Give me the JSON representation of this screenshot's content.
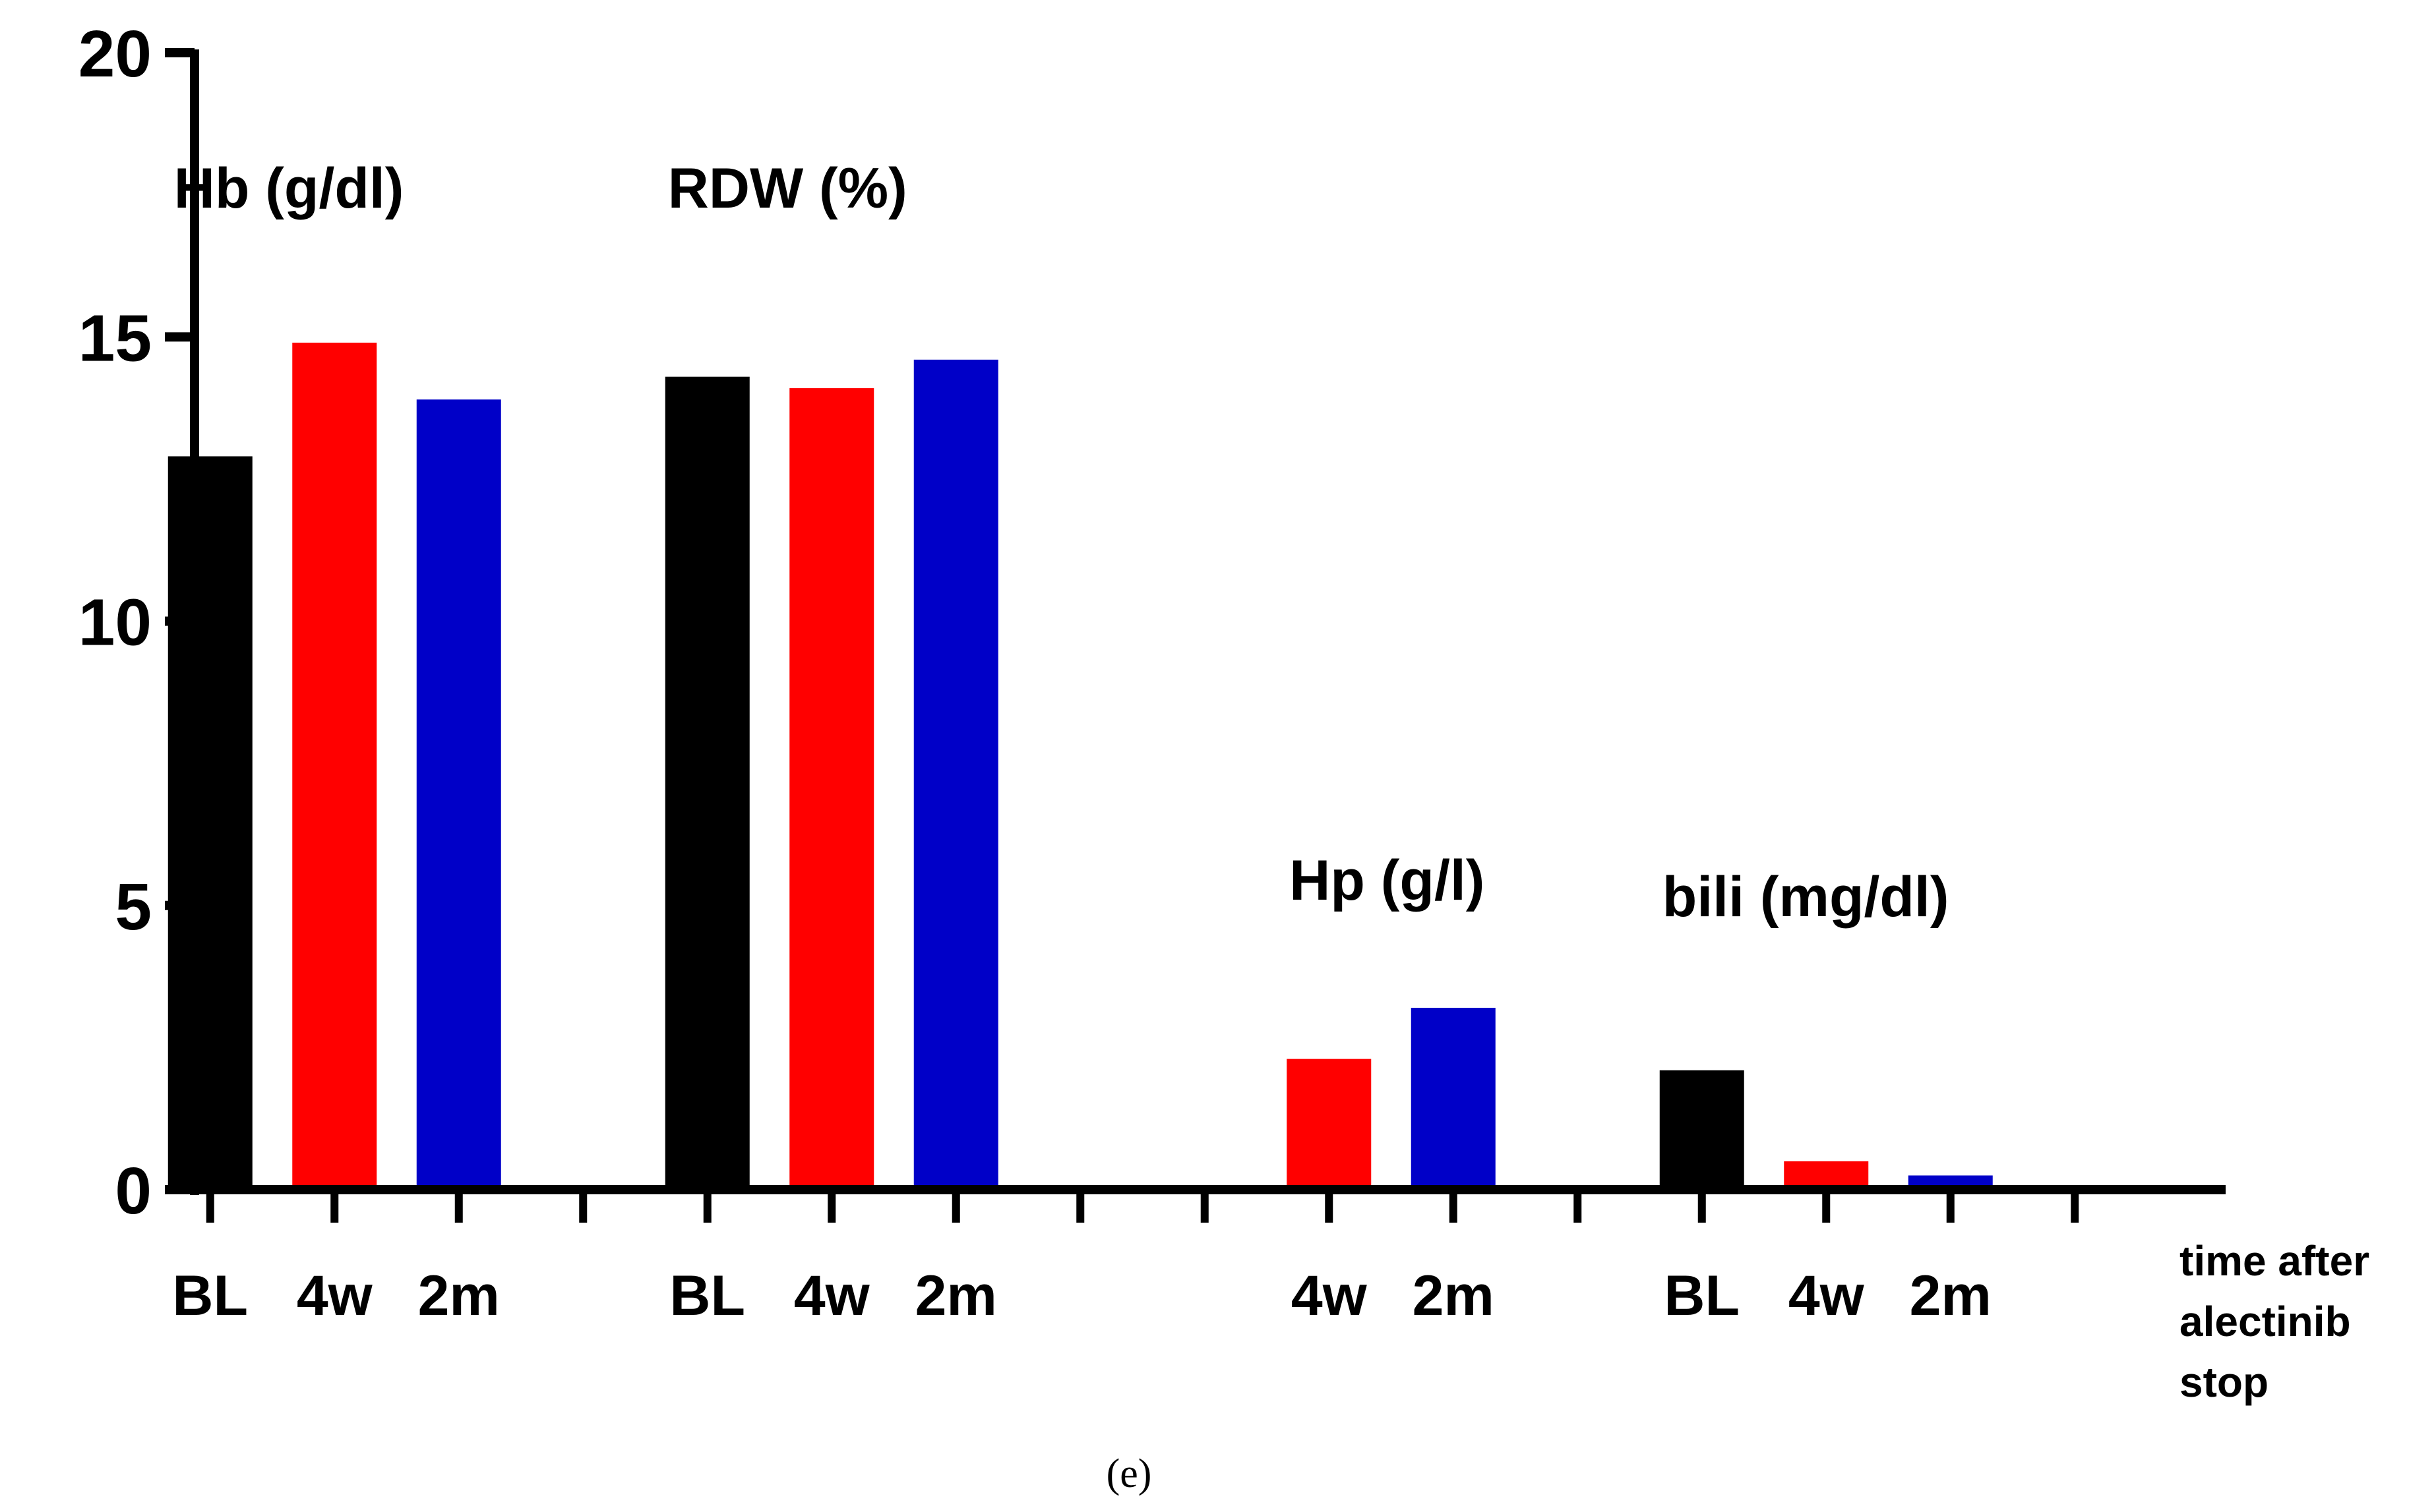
{
  "chart_data": {
    "type": "bar",
    "ylim": [
      0,
      20
    ],
    "yticks": [
      "0",
      "5",
      "10",
      "15",
      "20"
    ],
    "groups": [
      {
        "label": "Hb (g/dl)",
        "bars": [
          {
            "category": "BL",
            "value": 12.9,
            "color": "#000000"
          },
          {
            "category": "4w",
            "value": 14.9,
            "color": "#ff0000"
          },
          {
            "category": "2m",
            "value": 13.9,
            "color": "#0000c8"
          }
        ]
      },
      {
        "label": "RDW (%)",
        "bars": [
          {
            "category": "BL",
            "value": 14.3,
            "color": "#000000"
          },
          {
            "category": "4w",
            "value": 14.1,
            "color": "#ff0000"
          },
          {
            "category": "2m",
            "value": 14.6,
            "color": "#0000c8"
          }
        ]
      },
      {
        "label": "Hp (g/l)",
        "bars": [
          {
            "category": "",
            "value": null,
            "color": "#000000"
          },
          {
            "category": "4w",
            "value": 2.3,
            "color": "#ff0000"
          },
          {
            "category": "2m",
            "value": 3.2,
            "color": "#0000c8"
          }
        ]
      },
      {
        "label": "bili (mg/dl)",
        "bars": [
          {
            "category": "BL",
            "value": 2.1,
            "color": "#000000"
          },
          {
            "category": "4w",
            "value": 0.5,
            "color": "#ff0000"
          },
          {
            "category": "2m",
            "value": 0.25,
            "color": "#0000c8"
          }
        ]
      }
    ],
    "xlabel_lines": [
      "time after",
      "alectinib",
      "stop"
    ],
    "caption": "(e)"
  }
}
